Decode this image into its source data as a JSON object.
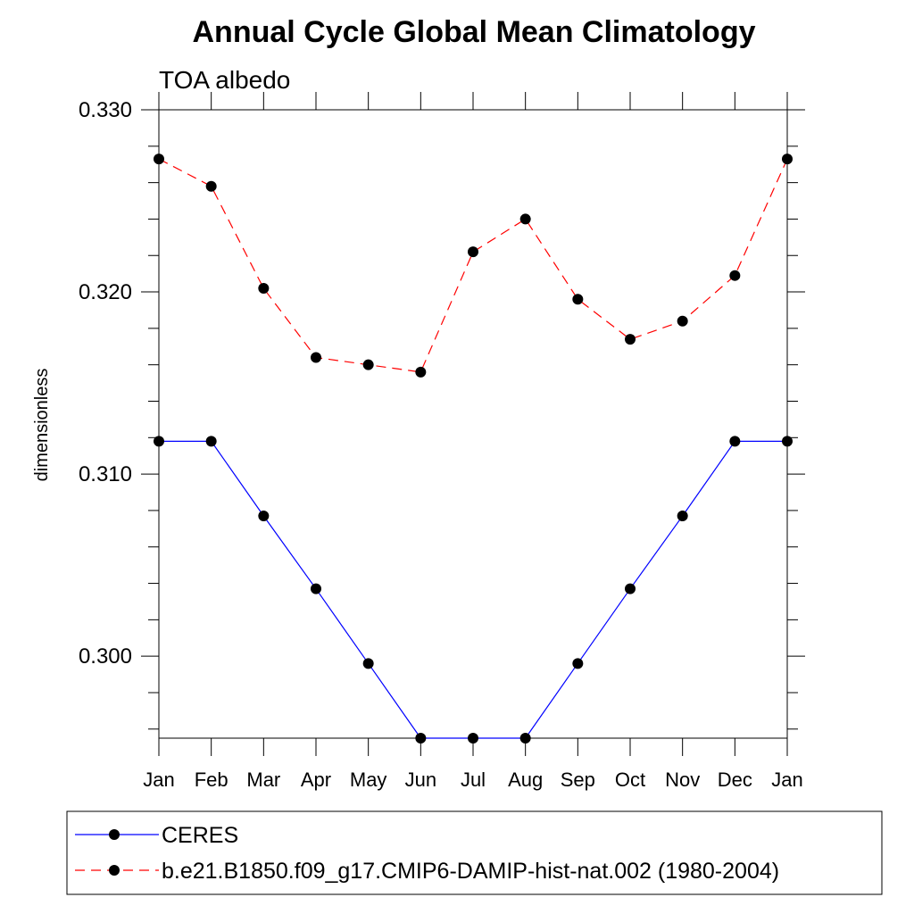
{
  "chart_data": {
    "type": "line",
    "title": "Annual Cycle Global Mean Climatology",
    "subtitle": "TOA albedo",
    "xlabel": "",
    "ylabel": "dimensionless",
    "categories": [
      "Jan",
      "Feb",
      "Mar",
      "Apr",
      "May",
      "Jun",
      "Jul",
      "Aug",
      "Sep",
      "Oct",
      "Nov",
      "Dec",
      "Jan"
    ],
    "ylim": [
      0.2955,
      0.33
    ],
    "yticks": [
      "0.330",
      "0.320",
      "0.310",
      "0.300"
    ],
    "ytick_values": [
      0.33,
      0.32,
      0.31,
      0.3
    ],
    "minor_tick_step": 0.002,
    "grid": false,
    "legend_position": "bottom",
    "series": [
      {
        "name": "CERES",
        "color": "#0000ff",
        "line_style": "solid",
        "marker": "filled-circle",
        "values": [
          0.3118,
          0.3118,
          0.3077,
          0.3037,
          0.2996,
          0.2955,
          0.2955,
          0.2955,
          0.2996,
          0.3037,
          0.3077,
          0.3118,
          0.3118
        ]
      },
      {
        "name": "b.e21.B1850.f09_g17.CMIP6-DAMIP-hist-nat.002 (1980-2004)",
        "color": "#ff0000",
        "line_style": "dashed",
        "marker": "filled-circle",
        "values": [
          0.3273,
          0.3258,
          0.3202,
          0.3164,
          0.316,
          0.3156,
          0.3222,
          0.324,
          0.3196,
          0.3174,
          0.3184,
          0.3209,
          0.3273
        ]
      }
    ]
  }
}
